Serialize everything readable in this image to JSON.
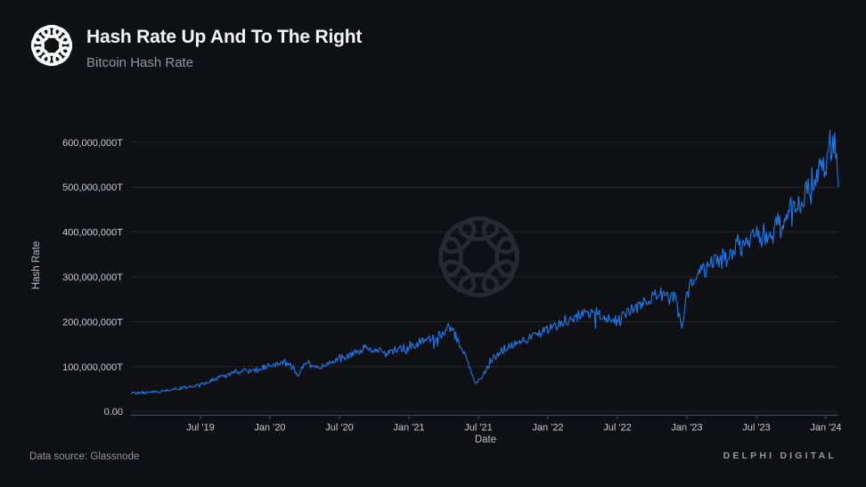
{
  "header": {
    "title": "Hash Rate Up And To The Right",
    "subtitle": "Bitcoin Hash Rate"
  },
  "icons": {
    "logo": "delphi-knot-logo",
    "watermark": "delphi-knot-watermark"
  },
  "colors": {
    "background": "#0f1013",
    "line": "#1e78ea",
    "grid": "#23262b",
    "axis": "#4d5157",
    "watermark": "#26292e",
    "logo": "#ffffff"
  },
  "footer": {
    "source": "Data source: Glassnode",
    "brand": "DELPHI DIGITAL"
  },
  "chart_data": {
    "type": "line",
    "title": "Hash Rate Up And To The Right",
    "subtitle": "Bitcoin Hash Rate",
    "xlabel": "Date",
    "ylabel": "Hash Rate",
    "unit": "T (terahash per second)",
    "x_range": [
      "2019-01",
      "2024-02"
    ],
    "ylim": [
      0,
      650000000
    ],
    "grid": "horizontal-only",
    "legend": "none",
    "y_ticks": [
      {
        "value": 0,
        "label": "0.00"
      },
      {
        "value": 100000000,
        "label": "100,000,000T"
      },
      {
        "value": 200000000,
        "label": "200,000,000T"
      },
      {
        "value": 300000000,
        "label": "300,000,000T"
      },
      {
        "value": 400000000,
        "label": "400,000,000T"
      },
      {
        "value": 500000000,
        "label": "500,000,000T"
      },
      {
        "value": 600000000,
        "label": "600,000,000T"
      }
    ],
    "x_ticks": [
      {
        "month_offset": 6,
        "label": "Jul '19"
      },
      {
        "month_offset": 12,
        "label": "Jan '20"
      },
      {
        "month_offset": 18,
        "label": "Jul '20"
      },
      {
        "month_offset": 24,
        "label": "Jan '21"
      },
      {
        "month_offset": 30,
        "label": "Jul '21"
      },
      {
        "month_offset": 36,
        "label": "Jan '22"
      },
      {
        "month_offset": 42,
        "label": "Jul '22"
      },
      {
        "month_offset": 48,
        "label": "Jan '23"
      },
      {
        "month_offset": 54,
        "label": "Jul '23"
      },
      {
        "month_offset": 60,
        "label": "Jan '24"
      }
    ],
    "months_span": 61.1,
    "series": [
      {
        "name": "Bitcoin Hash Rate",
        "note": "anchor points: [months since 2019-01, hash rate in T]; rendered with proportional daily noise",
        "noise_fraction": 0.07,
        "anchors": [
          [
            0,
            40000000
          ],
          [
            1,
            42000000
          ],
          [
            2,
            44000000
          ],
          [
            3,
            47000000
          ],
          [
            4,
            51000000
          ],
          [
            5,
            55000000
          ],
          [
            6,
            60000000
          ],
          [
            7,
            70000000
          ],
          [
            8,
            80000000
          ],
          [
            9,
            88000000
          ],
          [
            10,
            90000000
          ],
          [
            11,
            94000000
          ],
          [
            12,
            103000000
          ],
          [
            13,
            112000000
          ],
          [
            14,
            100000000
          ],
          [
            14.3,
            80000000
          ],
          [
            15,
            108000000
          ],
          [
            16,
            98000000
          ],
          [
            17,
            107000000
          ],
          [
            18,
            120000000
          ],
          [
            19,
            125000000
          ],
          [
            20,
            138000000
          ],
          [
            21,
            140000000
          ],
          [
            22,
            125000000
          ],
          [
            23,
            140000000
          ],
          [
            24,
            145000000
          ],
          [
            25,
            155000000
          ],
          [
            26,
            163000000
          ],
          [
            27,
            172000000
          ],
          [
            27.6,
            190000000
          ],
          [
            28,
            170000000
          ],
          [
            29,
            120000000
          ],
          [
            29.8,
            60000000
          ],
          [
            30.5,
            85000000
          ],
          [
            31,
            112000000
          ],
          [
            32,
            136000000
          ],
          [
            33,
            148000000
          ],
          [
            34,
            160000000
          ],
          [
            35,
            172000000
          ],
          [
            36,
            188000000
          ],
          [
            37,
            196000000
          ],
          [
            38,
            202000000
          ],
          [
            39,
            212000000
          ],
          [
            40,
            218000000
          ],
          [
            41,
            206000000
          ],
          [
            42,
            202000000
          ],
          [
            43,
            222000000
          ],
          [
            44,
            240000000
          ],
          [
            45,
            255000000
          ],
          [
            46,
            258000000
          ],
          [
            47,
            252000000
          ],
          [
            47.7,
            185000000
          ],
          [
            48,
            270000000
          ],
          [
            49,
            298000000
          ],
          [
            50,
            330000000
          ],
          [
            51,
            342000000
          ],
          [
            52,
            362000000
          ],
          [
            53,
            378000000
          ],
          [
            54,
            390000000
          ],
          [
            55,
            402000000
          ],
          [
            56,
            418000000
          ],
          [
            57,
            442000000
          ],
          [
            58,
            472000000
          ],
          [
            59,
            512000000
          ],
          [
            60,
            575000000
          ],
          [
            60.7,
            600000000
          ],
          [
            61.1,
            520000000
          ]
        ]
      }
    ]
  }
}
